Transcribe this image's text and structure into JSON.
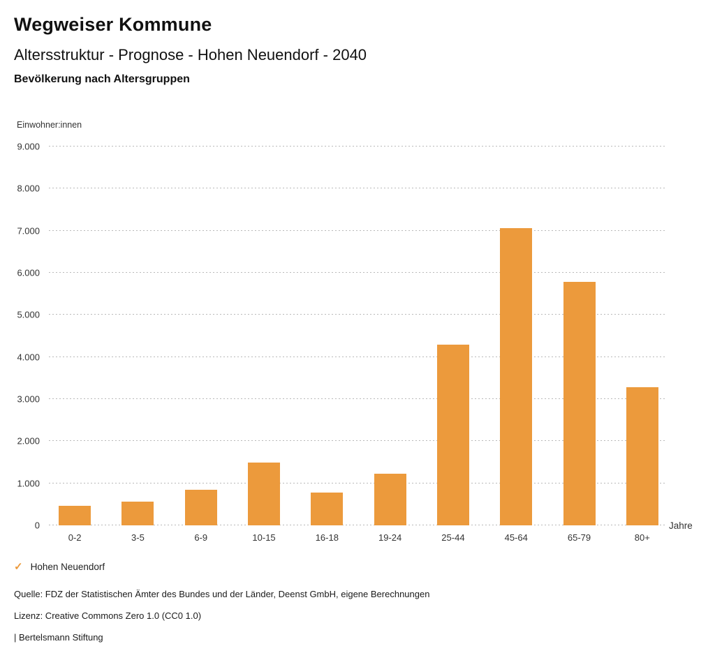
{
  "header": {
    "brand": "Wegweiser Kommune",
    "title": "Altersstruktur - Prognose - Hohen Neuendorf - 2040",
    "subtitle": "Bevölkerung nach Altersgruppen"
  },
  "chart_data": {
    "type": "bar",
    "title": "Altersstruktur - Prognose - Hohen Neuendorf - 2040",
    "subtitle": "Bevölkerung nach Altersgruppen",
    "unit_label": "Einwohner:innen",
    "x_axis_label": "Jahre",
    "categories": [
      "0-2",
      "3-5",
      "6-9",
      "10-15",
      "16-18",
      "19-24",
      "25-44",
      "45-64",
      "65-79",
      "80+"
    ],
    "series": [
      {
        "name": "Hohen Neuendorf",
        "values": [
          460,
          560,
          850,
          1500,
          780,
          1230,
          4290,
          7060,
          5780,
          3280
        ]
      }
    ],
    "ylim": [
      0,
      9000
    ],
    "yticks": [
      {
        "value": 0,
        "label": "0"
      },
      {
        "value": 1000,
        "label": "1.000"
      },
      {
        "value": 2000,
        "label": "2.000"
      },
      {
        "value": 3000,
        "label": "3.000"
      },
      {
        "value": 4000,
        "label": "4.000"
      },
      {
        "value": 5000,
        "label": "5.000"
      },
      {
        "value": 6000,
        "label": "6.000"
      },
      {
        "value": 7000,
        "label": "7.000"
      },
      {
        "value": 8000,
        "label": "8.000"
      },
      {
        "value": 9000,
        "label": "9.000"
      }
    ],
    "grid": "horizontal-dotted",
    "legend_position": "bottom-left",
    "bar_color": "#EC9A3C"
  },
  "legend": {
    "check_icon": "✓",
    "label": "Hohen Neuendorf",
    "color": "#EC9A3C"
  },
  "footer": {
    "source": "Quelle: FDZ der Statistischen Ämter des Bundes und der Länder, Deenst GmbH, eigene Berechnungen",
    "license": "Lizenz: Creative Commons Zero 1.0 (CC0 1.0)",
    "attribution": "| Bertelsmann Stiftung"
  },
  "colors": {
    "bar": "#EC9A3C",
    "grid": "#b9b9b9",
    "text": "#1a1a1a"
  }
}
